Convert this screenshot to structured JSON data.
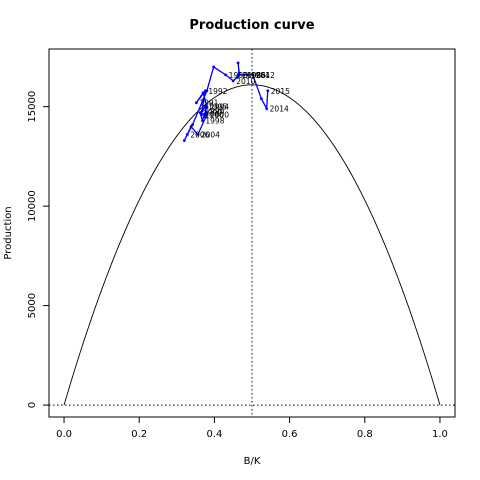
{
  "chart_data": {
    "type": "line",
    "title": "Production curve",
    "xlabel": "B/K",
    "ylabel": "Production",
    "xlim": [
      -0.04,
      1.04
    ],
    "ylim": [
      -600,
      17900
    ],
    "x_ticks": [
      0.0,
      0.2,
      0.4,
      0.6,
      0.8,
      1.0
    ],
    "x_tick_labels": [
      "0.0",
      "0.2",
      "0.4",
      "0.6",
      "0.8",
      "1.0"
    ],
    "y_ticks": [
      0,
      5000,
      10000,
      15000
    ],
    "y_tick_labels": [
      "0",
      "5000",
      "10000",
      "15000"
    ],
    "grid": false,
    "colors": {
      "curve": "#000000",
      "series": "#0000ff",
      "reference": "#000000"
    },
    "reference_lines": {
      "vertical_x": 0.5,
      "horizontal_y": 0
    },
    "curve": {
      "name": "",
      "formula": "4*MSY*x*(1-x)",
      "msy": 16100
    },
    "series": [
      {
        "name": "",
        "points": [
          {
            "x": 0.373,
            "y": 14500,
            "label": ""
          },
          {
            "x": 0.378,
            "y": 14700,
            "label": ""
          },
          {
            "x": 0.366,
            "y": 14600,
            "label": "1990"
          },
          {
            "x": 0.372,
            "y": 15400,
            "label": ""
          },
          {
            "x": 0.376,
            "y": 15800,
            "label": "1992"
          },
          {
            "x": 0.352,
            "y": 15200,
            "label": "1991"
          },
          {
            "x": 0.37,
            "y": 15700,
            "label": ""
          },
          {
            "x": 0.38,
            "y": 15000,
            "label": "1994"
          },
          {
            "x": 0.368,
            "y": 14300,
            "label": "1998"
          },
          {
            "x": 0.362,
            "y": 14700,
            "label": "1999"
          },
          {
            "x": 0.368,
            "y": 14800,
            "label": "1996"
          },
          {
            "x": 0.375,
            "y": 15000,
            "label": "1995"
          },
          {
            "x": 0.38,
            "y": 14600,
            "label": "2000"
          },
          {
            "x": 0.356,
            "y": 13600,
            "label": "2004"
          },
          {
            "x": 0.338,
            "y": 14000,
            "label": ""
          },
          {
            "x": 0.32,
            "y": 13300,
            "label": ""
          },
          {
            "x": 0.328,
            "y": 13600,
            "label": "2006"
          },
          {
            "x": 0.342,
            "y": 14100,
            "label": ""
          },
          {
            "x": 0.38,
            "y": 15800,
            "label": ""
          },
          {
            "x": 0.398,
            "y": 17000,
            "label": ""
          },
          {
            "x": 0.43,
            "y": 16600,
            "label": "1988"
          },
          {
            "x": 0.45,
            "y": 16300,
            "label": "2010"
          },
          {
            "x": 0.462,
            "y": 16500,
            "label": ""
          },
          {
            "x": 0.466,
            "y": 16700,
            "label": ""
          },
          {
            "x": 0.463,
            "y": 17200,
            "label": ""
          },
          {
            "x": 0.466,
            "y": 16600,
            "label": "2008"
          },
          {
            "x": 0.478,
            "y": 16600,
            "label": "1986"
          },
          {
            "x": 0.489,
            "y": 16600,
            "label": "1984"
          },
          {
            "x": 0.502,
            "y": 16600,
            "label": "2012"
          },
          {
            "x": 0.525,
            "y": 15400,
            "label": ""
          },
          {
            "x": 0.539,
            "y": 14900,
            "label": "2014"
          },
          {
            "x": 0.542,
            "y": 15800,
            "label": "2015"
          }
        ]
      }
    ]
  }
}
